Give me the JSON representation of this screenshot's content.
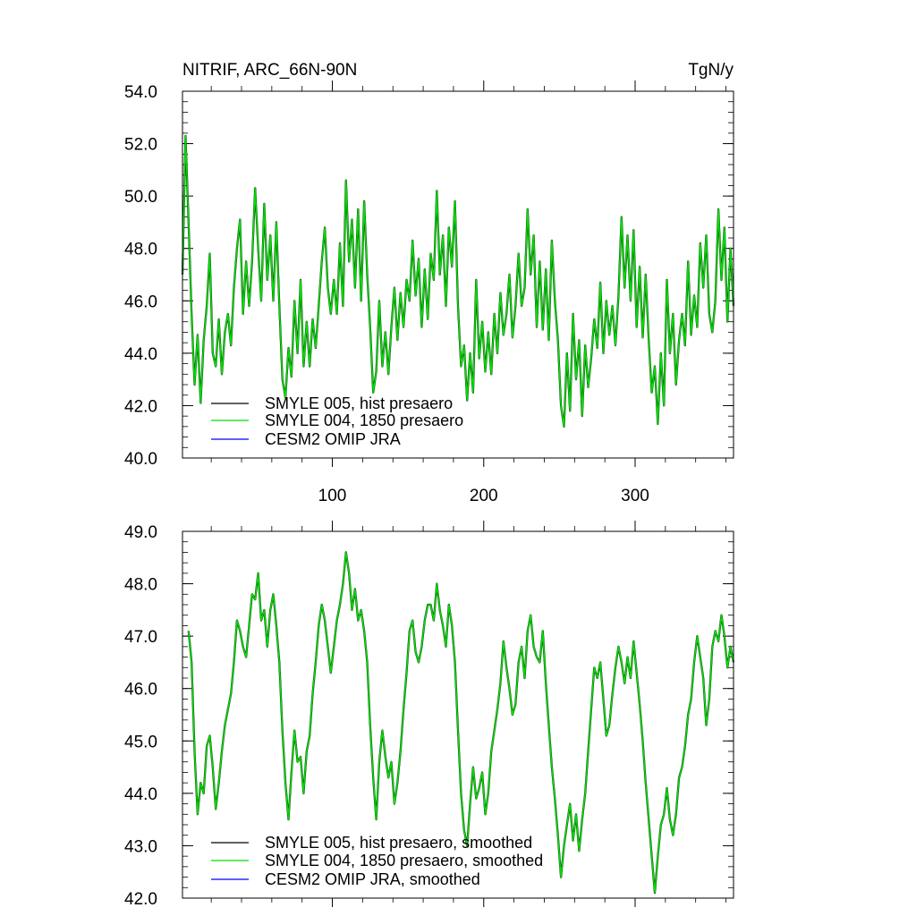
{
  "chart_data": [
    {
      "type": "line",
      "title_left": "NITRIF, ARC_66N-90N",
      "title_right": "TgN/y",
      "xlim": [
        1,
        365
      ],
      "ylim": [
        40,
        54
      ],
      "xticks": [
        100,
        200,
        300
      ],
      "yticks": [
        "40.0",
        "42.0",
        "44.0",
        "46.0",
        "48.0",
        "50.0",
        "52.0",
        "54.0"
      ],
      "legend": [
        {
          "label": "SMYLE 005, hist presaero",
          "color": "#000000"
        },
        {
          "label": "SMYLE 004, 1850 presaero",
          "color": "#00dd00"
        },
        {
          "label": "CESM2 OMIP JRA",
          "color": "#0000ff"
        }
      ],
      "anchors": [
        [
          1,
          47.0
        ],
        [
          3,
          52.3
        ],
        [
          5,
          49.0
        ],
        [
          7,
          45.5
        ],
        [
          9,
          42.8
        ],
        [
          11,
          44.7
        ],
        [
          13,
          42.1
        ],
        [
          15,
          44.5
        ],
        [
          17,
          45.8
        ],
        [
          19,
          47.8
        ],
        [
          21,
          44.0
        ],
        [
          23,
          43.5
        ],
        [
          25,
          45.3
        ],
        [
          27,
          43.2
        ],
        [
          29,
          44.8
        ],
        [
          31,
          45.5
        ],
        [
          33,
          44.3
        ],
        [
          35,
          46.5
        ],
        [
          37,
          48.0
        ],
        [
          39,
          49.1
        ],
        [
          41,
          45.5
        ],
        [
          43,
          47.5
        ],
        [
          45,
          45.8
        ],
        [
          47,
          47.5
        ],
        [
          49,
          50.3
        ],
        [
          51,
          48.0
        ],
        [
          53,
          46.0
        ],
        [
          55,
          49.7
        ],
        [
          57,
          46.8
        ],
        [
          59,
          48.5
        ],
        [
          61,
          46.0
        ],
        [
          63,
          49.0
        ],
        [
          65,
          45.8
        ],
        [
          67,
          43.0
        ],
        [
          69,
          42.3
        ],
        [
          71,
          44.2
        ],
        [
          73,
          43.1
        ],
        [
          75,
          46.0
        ],
        [
          77,
          44.0
        ],
        [
          79,
          46.8
        ],
        [
          81,
          43.5
        ],
        [
          83,
          45.2
        ],
        [
          85,
          43.5
        ],
        [
          87,
          45.3
        ],
        [
          89,
          44.2
        ],
        [
          91,
          45.8
        ],
        [
          93,
          47.5
        ],
        [
          95,
          48.8
        ],
        [
          97,
          46.5
        ],
        [
          99,
          45.5
        ],
        [
          101,
          46.8
        ],
        [
          103,
          45.5
        ],
        [
          105,
          48.2
        ],
        [
          107,
          45.8
        ],
        [
          109,
          50.6
        ],
        [
          111,
          47.5
        ],
        [
          113,
          49.1
        ],
        [
          115,
          46.5
        ],
        [
          117,
          49.5
        ],
        [
          119,
          46.0
        ],
        [
          121,
          49.8
        ],
        [
          123,
          47.0
        ],
        [
          125,
          45.0
        ],
        [
          127,
          42.5
        ],
        [
          129,
          43.3
        ],
        [
          131,
          46.0
        ],
        [
          133,
          43.5
        ],
        [
          135,
          44.8
        ],
        [
          137,
          43.2
        ],
        [
          139,
          45.0
        ],
        [
          141,
          46.5
        ],
        [
          143,
          44.5
        ],
        [
          145,
          46.3
        ],
        [
          147,
          45.0
        ],
        [
          149,
          46.8
        ],
        [
          151,
          46.0
        ],
        [
          153,
          48.3
        ],
        [
          155,
          46.2
        ],
        [
          157,
          47.6
        ],
        [
          159,
          45.0
        ],
        [
          161,
          47.2
        ],
        [
          163,
          45.3
        ],
        [
          165,
          47.8
        ],
        [
          167,
          46.8
        ],
        [
          169,
          50.2
        ],
        [
          171,
          47.0
        ],
        [
          173,
          48.5
        ],
        [
          175,
          45.8
        ],
        [
          177,
          48.8
        ],
        [
          179,
          47.3
        ],
        [
          181,
          49.8
        ],
        [
          183,
          45.8
        ],
        [
          185,
          43.5
        ],
        [
          187,
          44.3
        ],
        [
          189,
          42.2
        ],
        [
          191,
          44.0
        ],
        [
          193,
          42.5
        ],
        [
          195,
          46.8
        ],
        [
          197,
          43.8
        ],
        [
          199,
          45.2
        ],
        [
          201,
          43.3
        ],
        [
          203,
          44.8
        ],
        [
          205,
          43.2
        ],
        [
          207,
          45.5
        ],
        [
          209,
          44.0
        ],
        [
          211,
          46.3
        ],
        [
          213,
          44.7
        ],
        [
          215,
          45.5
        ],
        [
          217,
          47.0
        ],
        [
          219,
          44.6
        ],
        [
          221,
          45.8
        ],
        [
          223,
          47.8
        ],
        [
          225,
          45.8
        ],
        [
          227,
          46.5
        ],
        [
          229,
          49.5
        ],
        [
          231,
          47.0
        ],
        [
          233,
          48.5
        ],
        [
          235,
          45.0
        ],
        [
          237,
          47.5
        ],
        [
          239,
          44.9
        ],
        [
          241,
          47.2
        ],
        [
          243,
          44.5
        ],
        [
          245,
          48.3
        ],
        [
          247,
          46.0
        ],
        [
          249,
          44.5
        ],
        [
          251,
          42.0
        ],
        [
          253,
          41.2
        ],
        [
          255,
          44.0
        ],
        [
          257,
          41.8
        ],
        [
          259,
          45.5
        ],
        [
          261,
          43.0
        ],
        [
          263,
          44.5
        ],
        [
          265,
          41.6
        ],
        [
          267,
          44.3
        ],
        [
          269,
          42.7
        ],
        [
          271,
          43.8
        ],
        [
          273,
          45.3
        ],
        [
          275,
          44.2
        ],
        [
          277,
          46.7
        ],
        [
          279,
          44.0
        ],
        [
          281,
          46.0
        ],
        [
          283,
          44.7
        ],
        [
          285,
          45.8
        ],
        [
          287,
          44.3
        ],
        [
          289,
          46.2
        ],
        [
          291,
          49.2
        ],
        [
          293,
          46.5
        ],
        [
          295,
          48.5
        ],
        [
          297,
          46.0
        ],
        [
          299,
          48.7
        ],
        [
          301,
          45.0
        ],
        [
          303,
          47.3
        ],
        [
          305,
          44.6
        ],
        [
          307,
          47.0
        ],
        [
          309,
          44.5
        ],
        [
          311,
          42.5
        ],
        [
          313,
          43.5
        ],
        [
          315,
          41.3
        ],
        [
          317,
          44.0
        ],
        [
          319,
          42.0
        ],
        [
          321,
          46.8
        ],
        [
          323,
          44.0
        ],
        [
          325,
          45.5
        ],
        [
          327,
          42.8
        ],
        [
          329,
          44.5
        ],
        [
          331,
          45.5
        ],
        [
          333,
          44.3
        ],
        [
          335,
          47.5
        ],
        [
          337,
          44.7
        ],
        [
          339,
          46.2
        ],
        [
          341,
          45.0
        ],
        [
          343,
          48.2
        ],
        [
          345,
          46.5
        ],
        [
          347,
          48.5
        ],
        [
          349,
          45.5
        ],
        [
          351,
          44.8
        ],
        [
          353,
          46.0
        ],
        [
          355,
          49.5
        ],
        [
          357,
          46.8
        ],
        [
          359,
          48.8
        ],
        [
          361,
          45.2
        ],
        [
          363,
          48.0
        ],
        [
          365,
          45.8
        ]
      ]
    },
    {
      "type": "line",
      "xlim": [
        1,
        365
      ],
      "ylim": [
        42,
        49
      ],
      "yticks": [
        "42.0",
        "43.0",
        "44.0",
        "45.0",
        "46.0",
        "47.0",
        "48.0",
        "49.0"
      ],
      "legend": [
        {
          "label": "SMYLE 005, hist presaero, smoothed",
          "color": "#000000"
        },
        {
          "label": "SMYLE 004, 1850 presaero, smoothed",
          "color": "#00dd00"
        },
        {
          "label": "CESM2 OMIP JRA, smoothed",
          "color": "#0000ff"
        }
      ],
      "anchors": [
        [
          5,
          47.1
        ],
        [
          7,
          46.5
        ],
        [
          9,
          44.8
        ],
        [
          11,
          43.6
        ],
        [
          13,
          44.2
        ],
        [
          15,
          44.0
        ],
        [
          17,
          44.9
        ],
        [
          19,
          45.1
        ],
        [
          21,
          44.5
        ],
        [
          23,
          43.7
        ],
        [
          25,
          44.2
        ],
        [
          27,
          44.8
        ],
        [
          29,
          45.3
        ],
        [
          31,
          45.6
        ],
        [
          33,
          45.9
        ],
        [
          35,
          46.5
        ],
        [
          37,
          47.3
        ],
        [
          39,
          47.1
        ],
        [
          41,
          46.8
        ],
        [
          43,
          46.6
        ],
        [
          45,
          47.2
        ],
        [
          47,
          47.8
        ],
        [
          49,
          47.7
        ],
        [
          51,
          48.2
        ],
        [
          53,
          47.3
        ],
        [
          55,
          47.5
        ],
        [
          57,
          46.8
        ],
        [
          59,
          47.5
        ],
        [
          61,
          47.8
        ],
        [
          63,
          47.2
        ],
        [
          65,
          46.5
        ],
        [
          67,
          45.2
        ],
        [
          69,
          44.2
        ],
        [
          71,
          43.5
        ],
        [
          73,
          44.4
        ],
        [
          75,
          45.2
        ],
        [
          77,
          44.6
        ],
        [
          79,
          44.7
        ],
        [
          81,
          44.0
        ],
        [
          83,
          44.8
        ],
        [
          85,
          45.1
        ],
        [
          87,
          45.9
        ],
        [
          89,
          46.5
        ],
        [
          91,
          47.2
        ],
        [
          93,
          47.6
        ],
        [
          95,
          47.3
        ],
        [
          97,
          46.8
        ],
        [
          99,
          46.3
        ],
        [
          101,
          46.8
        ],
        [
          103,
          47.3
        ],
        [
          105,
          47.6
        ],
        [
          107,
          48.0
        ],
        [
          109,
          48.6
        ],
        [
          111,
          48.2
        ],
        [
          113,
          47.5
        ],
        [
          115,
          47.9
        ],
        [
          117,
          47.3
        ],
        [
          119,
          47.5
        ],
        [
          121,
          47.1
        ],
        [
          123,
          46.5
        ],
        [
          125,
          45.3
        ],
        [
          127,
          44.3
        ],
        [
          129,
          43.5
        ],
        [
          131,
          44.6
        ],
        [
          133,
          45.2
        ],
        [
          135,
          44.7
        ],
        [
          137,
          44.3
        ],
        [
          139,
          44.6
        ],
        [
          141,
          43.8
        ],
        [
          143,
          44.2
        ],
        [
          145,
          44.8
        ],
        [
          147,
          45.6
        ],
        [
          149,
          46.3
        ],
        [
          151,
          47.1
        ],
        [
          153,
          47.3
        ],
        [
          155,
          46.7
        ],
        [
          157,
          46.5
        ],
        [
          159,
          46.8
        ],
        [
          161,
          47.3
        ],
        [
          163,
          47.6
        ],
        [
          165,
          47.6
        ],
        [
          167,
          47.3
        ],
        [
          169,
          48.0
        ],
        [
          171,
          47.5
        ],
        [
          173,
          47.2
        ],
        [
          175,
          46.8
        ],
        [
          177,
          47.6
        ],
        [
          179,
          47.2
        ],
        [
          181,
          46.5
        ],
        [
          183,
          45.2
        ],
        [
          185,
          44.0
        ],
        [
          187,
          43.3
        ],
        [
          189,
          43.0
        ],
        [
          191,
          43.8
        ],
        [
          193,
          44.5
        ],
        [
          195,
          43.9
        ],
        [
          197,
          44.1
        ],
        [
          199,
          44.4
        ],
        [
          201,
          43.6
        ],
        [
          203,
          44.0
        ],
        [
          205,
          44.8
        ],
        [
          207,
          45.2
        ],
        [
          209,
          45.6
        ],
        [
          211,
          46.1
        ],
        [
          213,
          46.9
        ],
        [
          215,
          46.4
        ],
        [
          217,
          46.0
        ],
        [
          219,
          45.5
        ],
        [
          221,
          45.7
        ],
        [
          223,
          46.5
        ],
        [
          225,
          46.8
        ],
        [
          227,
          46.2
        ],
        [
          229,
          47.1
        ],
        [
          231,
          47.4
        ],
        [
          233,
          46.8
        ],
        [
          235,
          46.6
        ],
        [
          237,
          46.5
        ],
        [
          239,
          47.1
        ],
        [
          241,
          46.1
        ],
        [
          243,
          45.3
        ],
        [
          245,
          44.5
        ],
        [
          247,
          43.9
        ],
        [
          249,
          43.2
        ],
        [
          251,
          42.4
        ],
        [
          253,
          43.0
        ],
        [
          255,
          43.4
        ],
        [
          257,
          43.8
        ],
        [
          259,
          43.1
        ],
        [
          261,
          43.6
        ],
        [
          263,
          42.9
        ],
        [
          265,
          43.5
        ],
        [
          267,
          44.0
        ],
        [
          269,
          44.8
        ],
        [
          271,
          45.6
        ],
        [
          273,
          46.4
        ],
        [
          275,
          46.2
        ],
        [
          277,
          46.5
        ],
        [
          279,
          45.8
        ],
        [
          281,
          45.1
        ],
        [
          283,
          45.3
        ],
        [
          285,
          45.9
        ],
        [
          287,
          46.4
        ],
        [
          289,
          46.8
        ],
        [
          291,
          46.5
        ],
        [
          293,
          46.1
        ],
        [
          295,
          46.6
        ],
        [
          297,
          46.2
        ],
        [
          299,
          46.9
        ],
        [
          301,
          46.3
        ],
        [
          303,
          45.7
        ],
        [
          305,
          45.0
        ],
        [
          307,
          44.2
        ],
        [
          309,
          43.5
        ],
        [
          311,
          42.8
        ],
        [
          313,
          42.1
        ],
        [
          315,
          42.8
        ],
        [
          317,
          43.4
        ],
        [
          319,
          43.6
        ],
        [
          321,
          44.1
        ],
        [
          323,
          43.5
        ],
        [
          325,
          43.2
        ],
        [
          327,
          43.6
        ],
        [
          329,
          44.3
        ],
        [
          331,
          44.5
        ],
        [
          333,
          44.9
        ],
        [
          335,
          45.5
        ],
        [
          337,
          45.8
        ],
        [
          339,
          46.5
        ],
        [
          341,
          47.0
        ],
        [
          343,
          46.6
        ],
        [
          345,
          46.2
        ],
        [
          347,
          45.3
        ],
        [
          349,
          45.8
        ],
        [
          351,
          46.8
        ],
        [
          353,
          47.1
        ],
        [
          355,
          46.9
        ],
        [
          357,
          47.4
        ],
        [
          359,
          47.0
        ],
        [
          361,
          46.4
        ],
        [
          363,
          46.8
        ],
        [
          365,
          46.5
        ]
      ]
    }
  ]
}
